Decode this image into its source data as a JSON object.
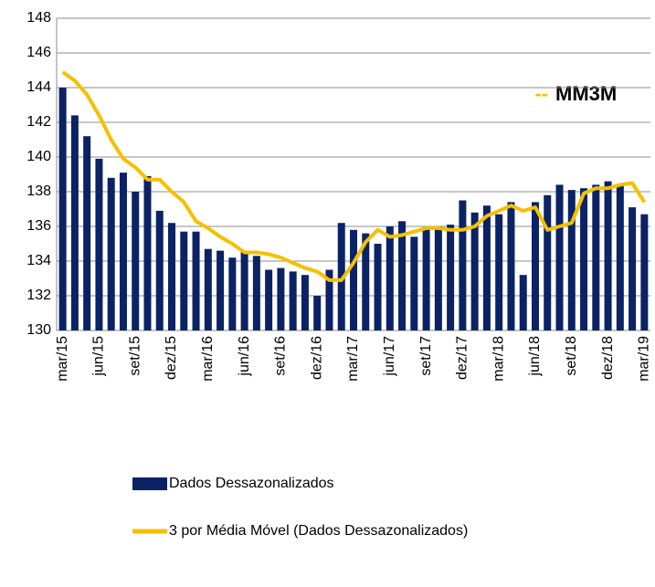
{
  "chart_data": {
    "type": "bar",
    "categories": [
      "mar/15",
      null,
      null,
      "jun/15",
      null,
      null,
      "set/15",
      null,
      null,
      "dez/15",
      null,
      null,
      "mar/16",
      null,
      null,
      "jun/16",
      null,
      null,
      "set/16",
      null,
      null,
      "dez/16",
      null,
      null,
      "mar/17",
      null,
      null,
      "jun/17",
      null,
      null,
      "set/17",
      null,
      null,
      "dez/17",
      null,
      null,
      "mar/18",
      null,
      null,
      "jun/18",
      null,
      null,
      "set/18",
      null,
      null,
      "dez/18",
      null,
      null,
      "mar/19"
    ],
    "series": [
      {
        "name": "Dados Dessazonalizados",
        "type": "bar",
        "color": "#0b2265",
        "values": [
          144.0,
          142.4,
          141.2,
          139.9,
          138.8,
          139.1,
          138.0,
          138.9,
          136.9,
          136.2,
          135.7,
          135.7,
          134.7,
          134.6,
          134.2,
          134.6,
          134.3,
          133.5,
          133.6,
          133.4,
          133.2,
          132.0,
          133.5,
          136.2,
          135.8,
          135.6,
          135.0,
          136.0,
          136.3,
          135.4,
          135.9,
          136.0,
          136.1,
          137.5,
          136.8,
          137.2,
          136.7,
          137.4,
          133.2,
          137.4,
          137.8,
          138.4,
          138.1,
          138.2,
          138.4,
          138.6,
          138.4,
          137.1,
          136.7
        ]
      },
      {
        "name": "3 por Média Móvel (Dados Dessazonalizados)",
        "type": "line",
        "color": "#f5c000",
        "values": [
          144.9,
          144.4,
          143.6,
          142.4,
          141.0,
          139.9,
          139.4,
          138.7,
          138.7,
          138.0,
          137.4,
          136.3,
          135.9,
          135.4,
          135.0,
          134.5,
          134.5,
          134.4,
          134.2,
          133.9,
          133.6,
          133.4,
          132.9,
          132.9,
          133.9,
          135.1,
          135.8,
          135.4,
          135.5,
          135.7,
          135.9,
          135.9,
          135.8,
          135.8,
          136.0,
          136.6,
          136.9,
          137.2,
          136.9,
          137.1,
          135.8,
          136.0,
          136.2,
          137.9,
          138.2,
          138.2,
          138.4,
          138.5,
          137.4
        ]
      }
    ],
    "annotation": {
      "marker": "--",
      "text": "MM3M"
    },
    "ylim": [
      130,
      148
    ],
    "yticks": [
      130,
      132,
      134,
      136,
      138,
      140,
      142,
      144,
      146,
      148
    ],
    "grid": true,
    "legend": "bottom"
  }
}
